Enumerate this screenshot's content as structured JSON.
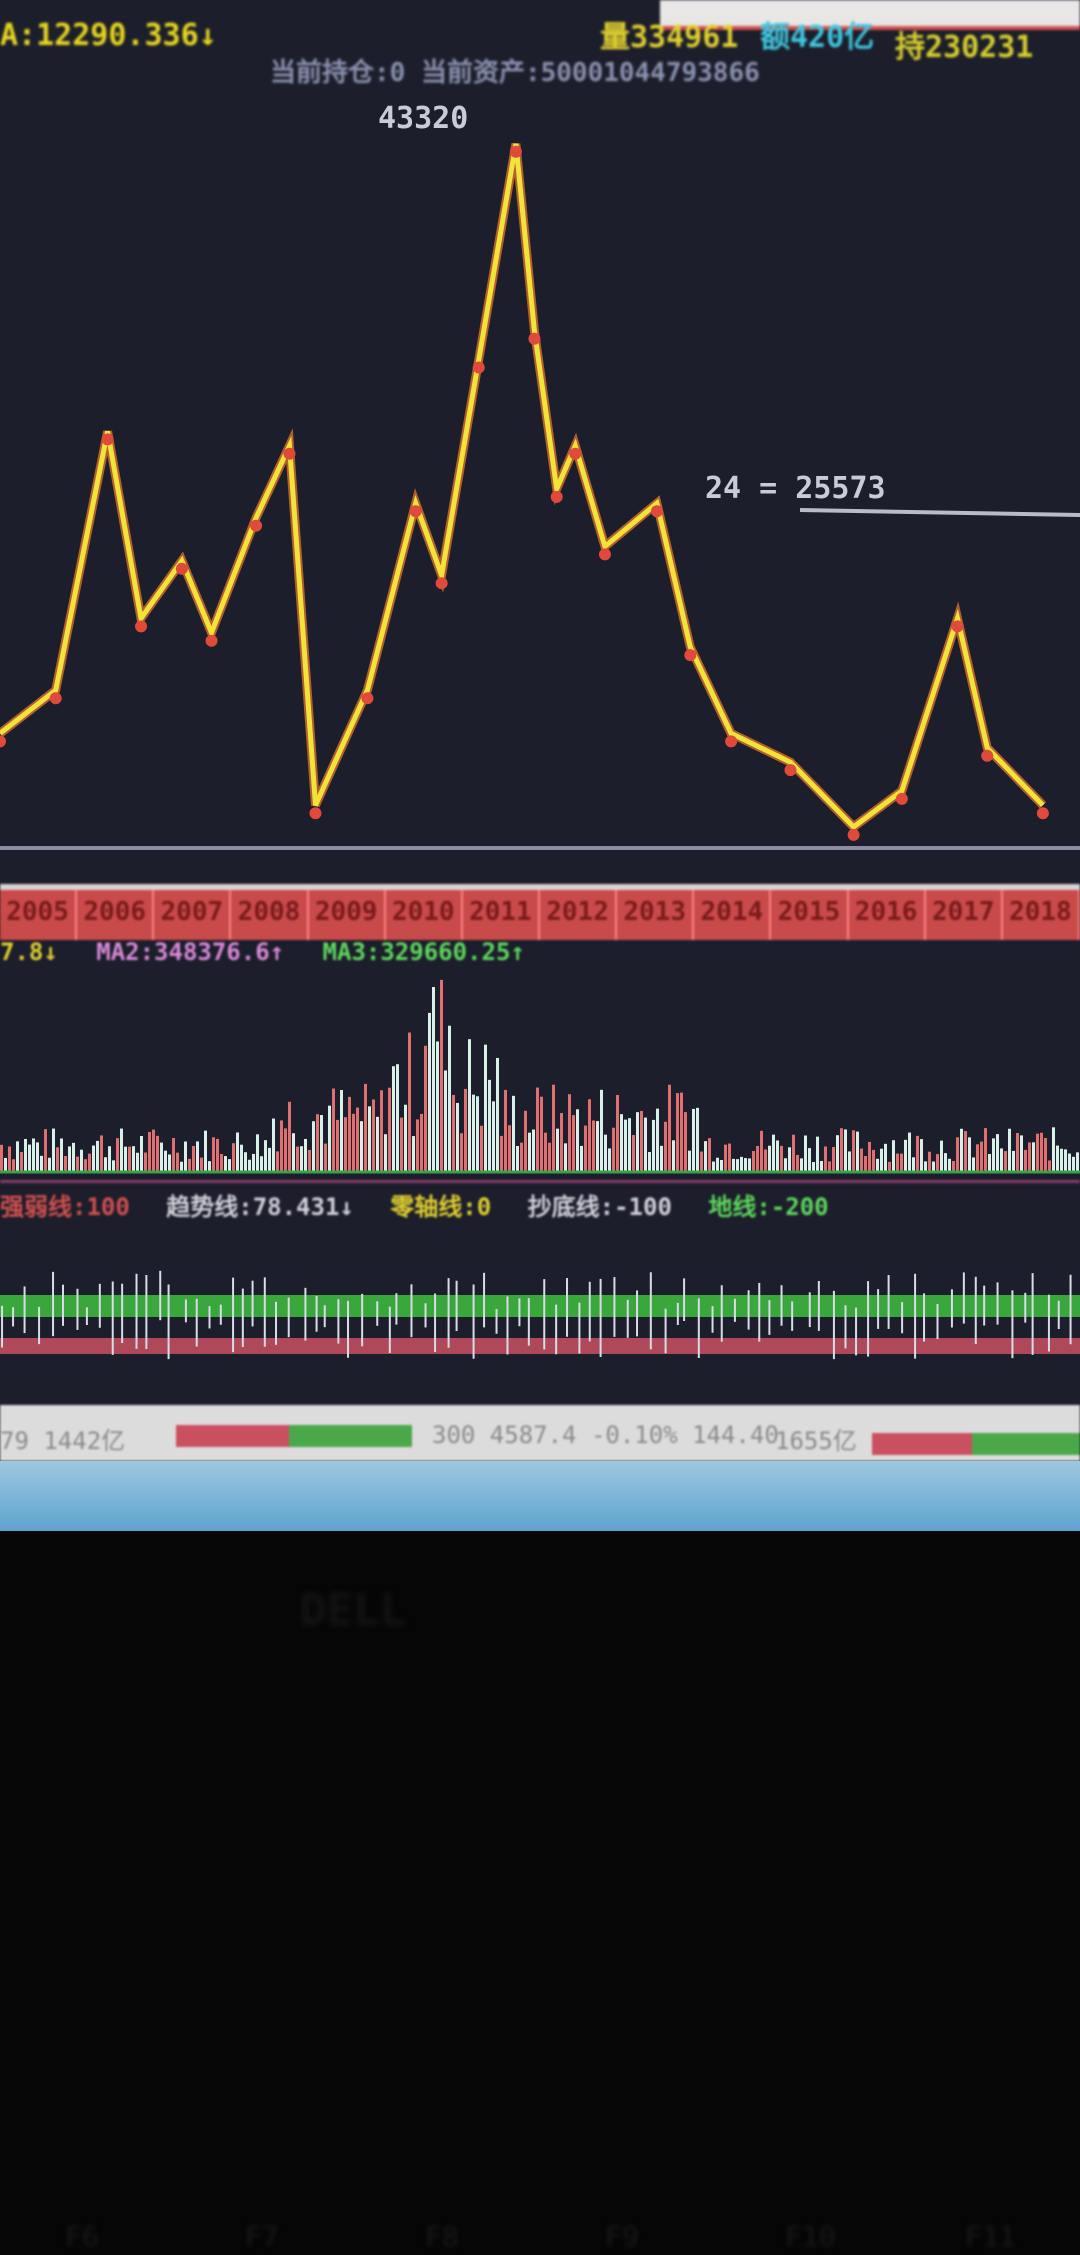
{
  "header": {
    "price": "A:12290.336↓",
    "position": "当前持仓:0 当前资产:50001044793866",
    "volume": "量334961",
    "amount": "额420亿",
    "open_interest": "持230231"
  },
  "chart_data": {
    "type": "line",
    "title": "",
    "x": [
      2004.45,
      2005.2,
      2005.9,
      2006.35,
      2006.9,
      2007.3,
      2007.9,
      2008.35,
      2008.7,
      2009.4,
      2010.05,
      2010.4,
      2010.9,
      2011.4,
      2011.65,
      2011.95,
      2012.2,
      2012.6,
      2013.3,
      2013.75,
      2014.3,
      2015.1,
      2015.95,
      2016.6,
      2017.35,
      2017.75,
      2018.5
    ],
    "series": [
      {
        "values": [
          14975,
          17025,
          29318,
          20440,
          23172,
          19757,
          25220,
          28636,
          11560,
          17025,
          25904,
          22489,
          32734,
          42979,
          34100,
          26587,
          28636,
          23855,
          25904,
          19074,
          14975,
          13609,
          10536,
          12243,
          20440,
          14292,
          11560
        ]
      }
    ],
    "annotations": [
      "43320",
      "24 = 25573"
    ],
    "x_tick_labels": [
      "2005",
      "2006",
      "2007",
      "2008",
      "2009",
      "2010",
      "2011",
      "2012",
      "2013",
      "2014",
      "2015",
      "2016",
      "2017",
      "2018"
    ],
    "line_color": "#f2e23a",
    "xlim": [
      2004.45,
      2019.0
    ]
  },
  "ma": {
    "ma1": "7.8↓",
    "ma2": "MA2:348376.6↑",
    "ma3": "MA3:329660.25↑"
  },
  "indicator": {
    "strong": "强弱线:100",
    "trend": "趋势线:78.431↓",
    "zero": "零轴线:0",
    "bottom": "抄底线:-100",
    "ground": "地线:-200"
  },
  "status": {
    "left": "79 1442亿",
    "index": "300 4587.4 -0.10% 144.40",
    "amount": "1655亿"
  },
  "logo": "DELL",
  "keys": [
    "F6",
    "F7",
    "F8",
    "F9",
    "F10",
    "F11"
  ],
  "colors": {
    "up": "#d9534f",
    "down": "#3fbf3f",
    "bg": "#1c1e2b"
  }
}
